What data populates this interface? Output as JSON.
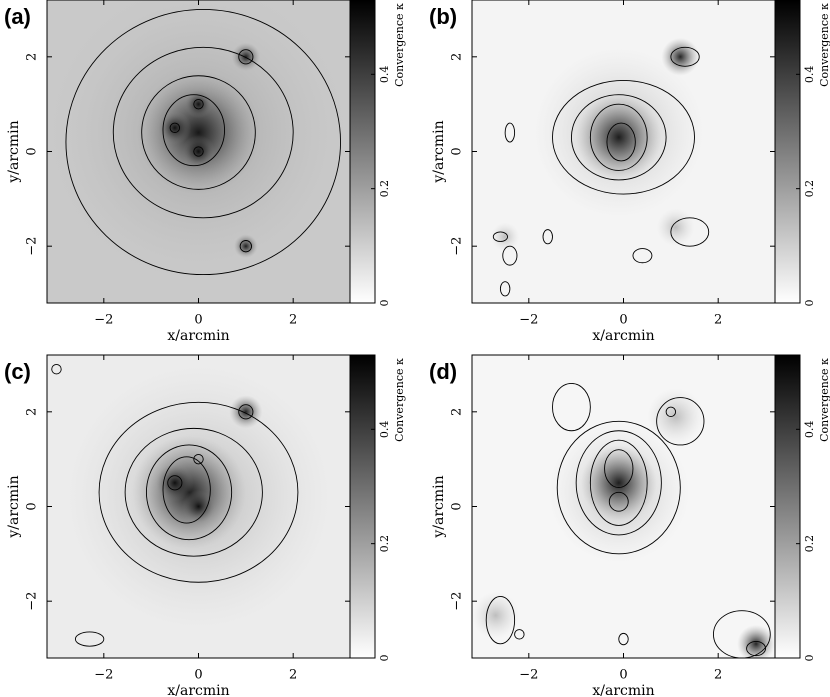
{
  "chart_data": [
    {
      "type": "map",
      "panel": "(a)",
      "xlabel": "x/arcmin",
      "ylabel": "y/arcmin",
      "cbar_label": "Convergence κ",
      "xlim": [
        -3.2,
        3.2
      ],
      "ylim": [
        -3.2,
        3.2
      ],
      "xticks": [
        {
          "value": -2,
          "label": "−2"
        },
        0,
        2
      ],
      "yticks": [
        {
          "value": -2,
          "label": "−2"
        },
        0,
        2
      ],
      "clim": [
        0,
        0.53
      ],
      "cticks": [
        0,
        0.2,
        0.4
      ]
    },
    {
      "type": "map",
      "panel": "(b)",
      "xlabel": "x/arcmin",
      "ylabel": "y/arcmin",
      "cbar_label": "Convergence κ",
      "xlim": [
        -3.2,
        3.2
      ],
      "ylim": [
        -3.2,
        3.2
      ],
      "xticks": [
        {
          "value": -2,
          "label": "−2"
        },
        0,
        2
      ],
      "yticks": [
        {
          "value": -2,
          "label": "−2"
        },
        0,
        2
      ],
      "clim": [
        0,
        0.53
      ],
      "cticks": [
        0,
        0.2,
        0.4
      ]
    },
    {
      "type": "map",
      "panel": "(c)",
      "xlabel": "x/arcmin",
      "ylabel": "y/arcmin",
      "cbar_label": "Convergence κ",
      "xlim": [
        -3.2,
        3.2
      ],
      "ylim": [
        -3.2,
        3.2
      ],
      "xticks": [
        {
          "value": -2,
          "label": "−2"
        },
        0,
        2
      ],
      "yticks": [
        {
          "value": -2,
          "label": "−2"
        },
        0,
        2
      ],
      "clim": [
        0,
        0.53
      ],
      "cticks": [
        0,
        0.2,
        0.4
      ]
    },
    {
      "type": "map",
      "panel": "(d)",
      "xlabel": "x/arcmin",
      "ylabel": "y/arcmin",
      "cbar_label": "Convergence κ",
      "xlim": [
        -3.2,
        3.2
      ],
      "ylim": [
        -3.2,
        3.2
      ],
      "xticks": [
        {
          "value": -2,
          "label": "−2"
        },
        0,
        2
      ],
      "yticks": [
        {
          "value": -2,
          "label": "−2"
        },
        0,
        2
      ],
      "clim": [
        0,
        0.53
      ],
      "cticks": [
        0,
        0.2,
        0.4
      ]
    }
  ]
}
